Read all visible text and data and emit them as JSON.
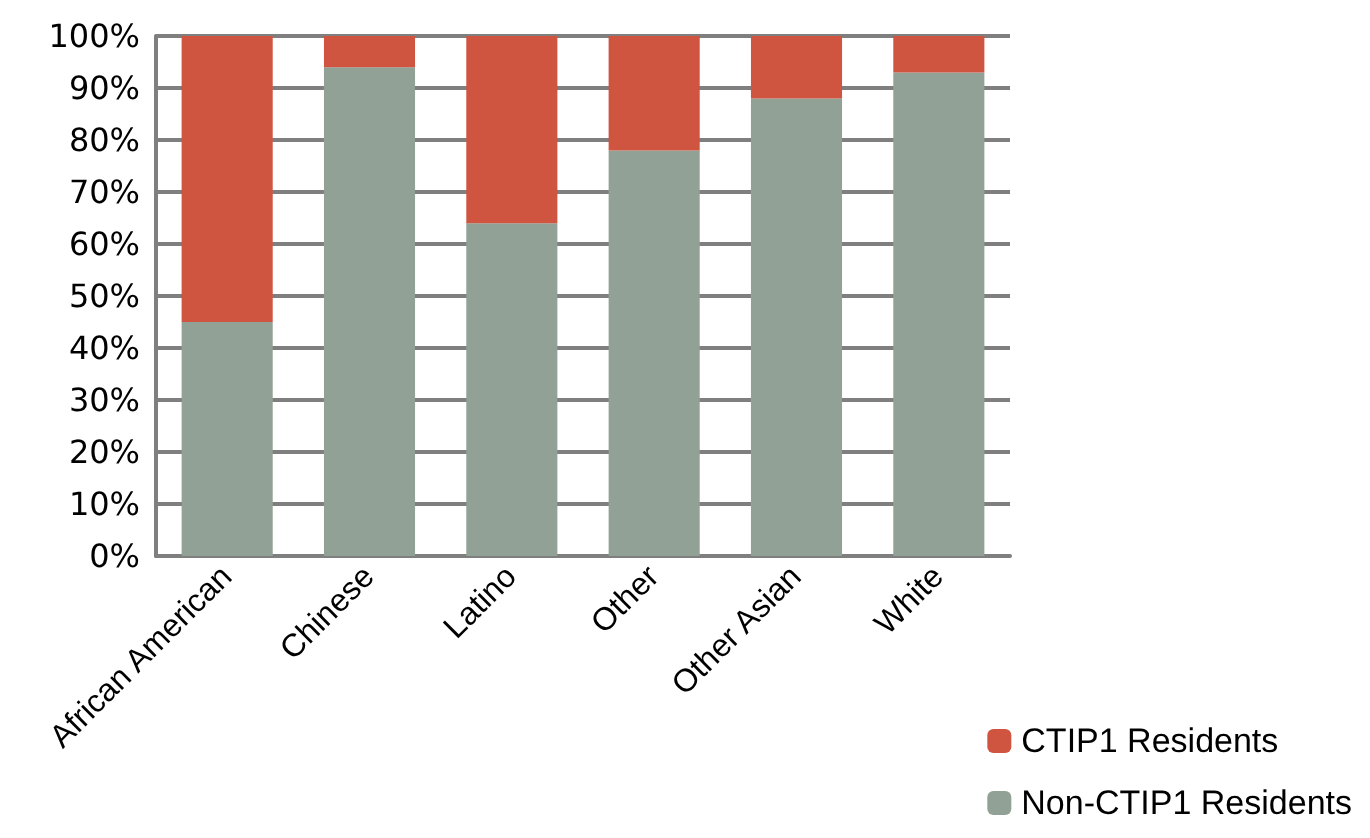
{
  "chart_data": {
    "type": "bar",
    "stacked": true,
    "categories": [
      "African American",
      "Chinese",
      "Latino",
      "Other",
      "Other Asian",
      "White"
    ],
    "series": [
      {
        "name": "Non-CTIP1 Residents",
        "color": "#92a195",
        "values": [
          45,
          94,
          64,
          78,
          88,
          93
        ]
      },
      {
        "name": "CTIP1 Residents",
        "color": "#d05540",
        "values": [
          55,
          6,
          36,
          22,
          12,
          7
        ]
      }
    ],
    "ylim": [
      0,
      100
    ],
    "yticks": [
      {
        "value": 0,
        "label": "0%"
      },
      {
        "value": 10,
        "label": "10%"
      },
      {
        "value": 20,
        "label": "20%"
      },
      {
        "value": 30,
        "label": "30%"
      },
      {
        "value": 40,
        "label": "40%"
      },
      {
        "value": 50,
        "label": "50%"
      },
      {
        "value": 60,
        "label": "60%"
      },
      {
        "value": 70,
        "label": "70%"
      },
      {
        "value": 80,
        "label": "80%"
      },
      {
        "value": 90,
        "label": "90%"
      },
      {
        "value": 100,
        "label": "100%"
      }
    ],
    "grid": "y",
    "legend": "bottom right"
  }
}
